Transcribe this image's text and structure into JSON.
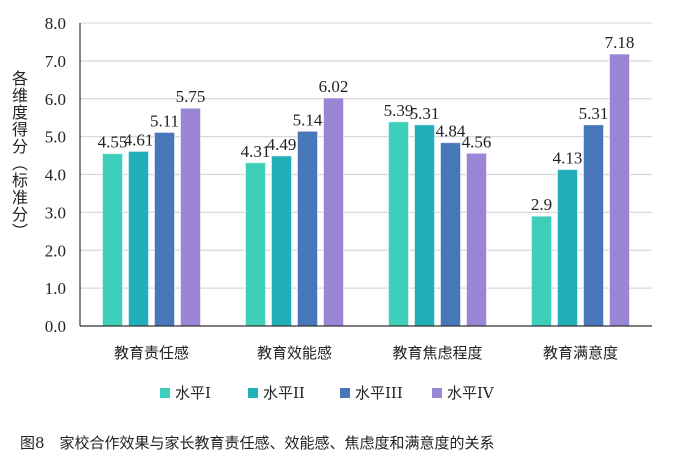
{
  "chart_data": {
    "type": "bar",
    "title": "",
    "ylabel": "各维度得分（标准分）",
    "xlabel": "",
    "ylim": [
      0,
      8
    ],
    "yticks": [
      "0.0",
      "1.0",
      "2.0",
      "3.0",
      "4.0",
      "5.0",
      "6.0",
      "7.0",
      "8.0"
    ],
    "grid": true,
    "legend_position": "bottom",
    "categories": [
      "教育责任感",
      "教育效能感",
      "教育焦虑程度",
      "教育满意度"
    ],
    "series": [
      {
        "name": "水平I",
        "color": "#3ECFBA",
        "values": [
          4.55,
          4.31,
          5.39,
          2.9
        ],
        "labels": [
          "4.55",
          "4.31",
          "5.39",
          "2.9"
        ]
      },
      {
        "name": "水平II",
        "color": "#21AFB9",
        "values": [
          4.61,
          4.49,
          5.31,
          4.13
        ],
        "labels": [
          "4.61",
          "4.49",
          "5.31",
          "4.13"
        ]
      },
      {
        "name": "水平III",
        "color": "#4776B9",
        "values": [
          5.11,
          5.14,
          4.84,
          5.31
        ],
        "labels": [
          "5.11",
          "5.14",
          "4.84",
          "5.31"
        ]
      },
      {
        "name": "水平IV",
        "color": "#9B86D6",
        "values": [
          5.75,
          6.02,
          4.56,
          7.18
        ],
        "labels": [
          "5.75",
          "6.02",
          "4.56",
          "7.18"
        ]
      }
    ]
  },
  "caption": "图8　家校合作效果与家长教育责任感、效能感、焦虑度和满意度的关系"
}
